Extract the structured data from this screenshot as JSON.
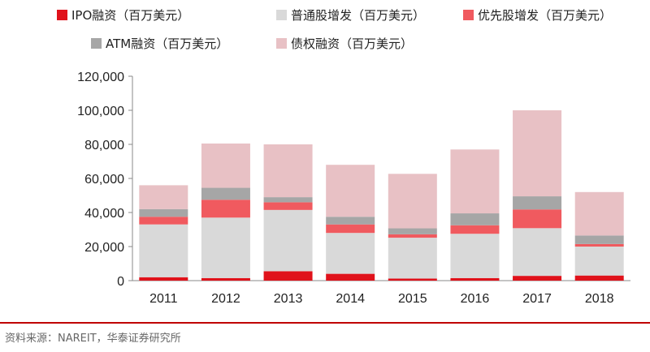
{
  "chart_data": {
    "type": "bar",
    "stacked": true,
    "categories": [
      "2011",
      "2012",
      "2013",
      "2014",
      "2015",
      "2016",
      "2017",
      "2018"
    ],
    "series": [
      {
        "name": "IPO融资（百万美元）",
        "color": "#e0121b",
        "values": [
          2000,
          1500,
          5500,
          4000,
          1200,
          1500,
          2800,
          3000
        ]
      },
      {
        "name": "普通股增发（百万美元）",
        "color": "#d9d9d9",
        "values": [
          31000,
          35500,
          36000,
          24000,
          24000,
          26000,
          28000,
          17000
        ]
      },
      {
        "name": "优先股增发（百万美元）",
        "color": "#f05a5f",
        "values": [
          4500,
          10500,
          4500,
          5000,
          2000,
          5000,
          11000,
          1500
        ]
      },
      {
        "name": "ATM融资（百万美元）",
        "color": "#a6a6a6",
        "values": [
          4500,
          7000,
          3000,
          4500,
          3500,
          7000,
          7700,
          5000
        ]
      },
      {
        "name": "债权融资（百万美元）",
        "color": "#e8c1c5",
        "values": [
          14000,
          26000,
          31000,
          30500,
          32000,
          37500,
          50500,
          25500
        ]
      }
    ],
    "yticks": [
      "0",
      "20,000",
      "40,000",
      "60,000",
      "80,000",
      "100,000",
      "120,000"
    ],
    "ylim": [
      0,
      120000
    ],
    "grid": false,
    "legend_position": "top",
    "source": "资料来源：NAREIT，华泰证券研究所"
  }
}
